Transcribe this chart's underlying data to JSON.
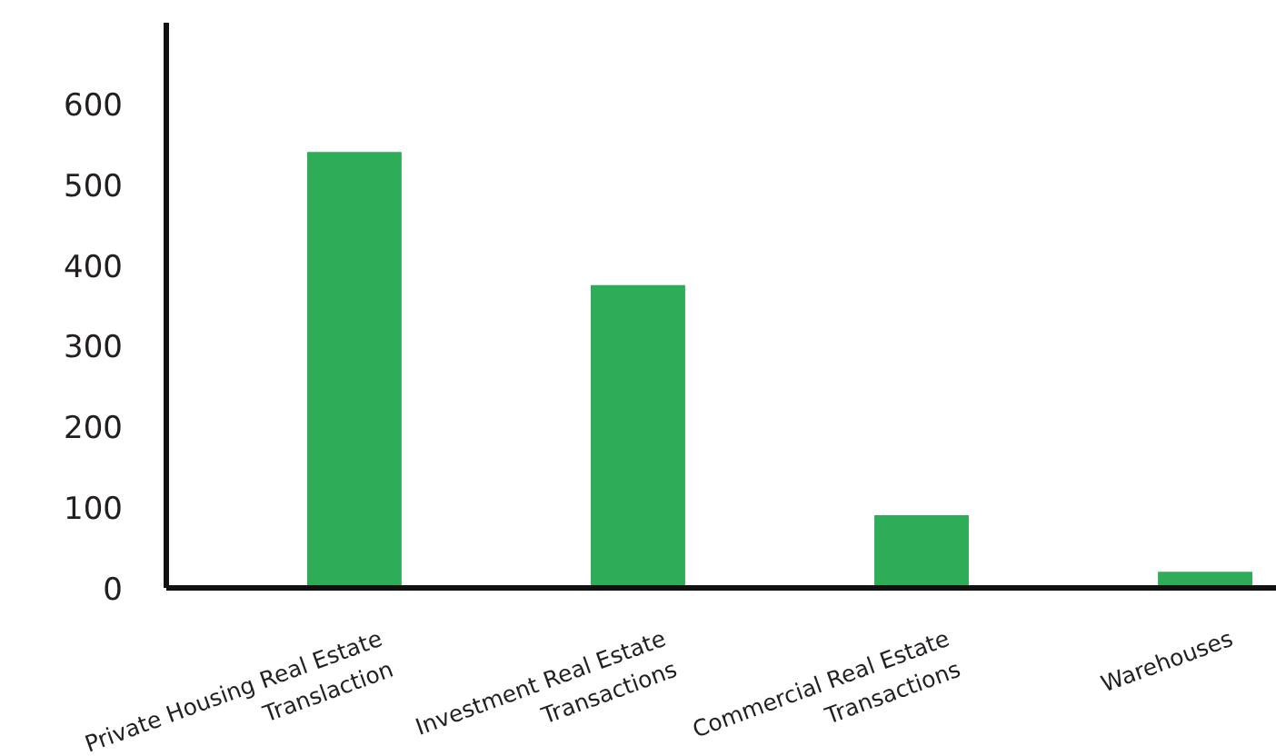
{
  "chart_data": {
    "type": "bar",
    "categories": [
      "Private Housing Real Estate\nTranslaction",
      "Investment Real Estate\nTransactions",
      "Commercial Real Estate\nTransactions",
      "Warehouses"
    ],
    "values": [
      540,
      375,
      90,
      20
    ],
    "color": "#2fac58",
    "ylim": [
      0,
      700
    ],
    "yticks": [
      0,
      100,
      200,
      300,
      400,
      500,
      600
    ],
    "grid": false
  }
}
